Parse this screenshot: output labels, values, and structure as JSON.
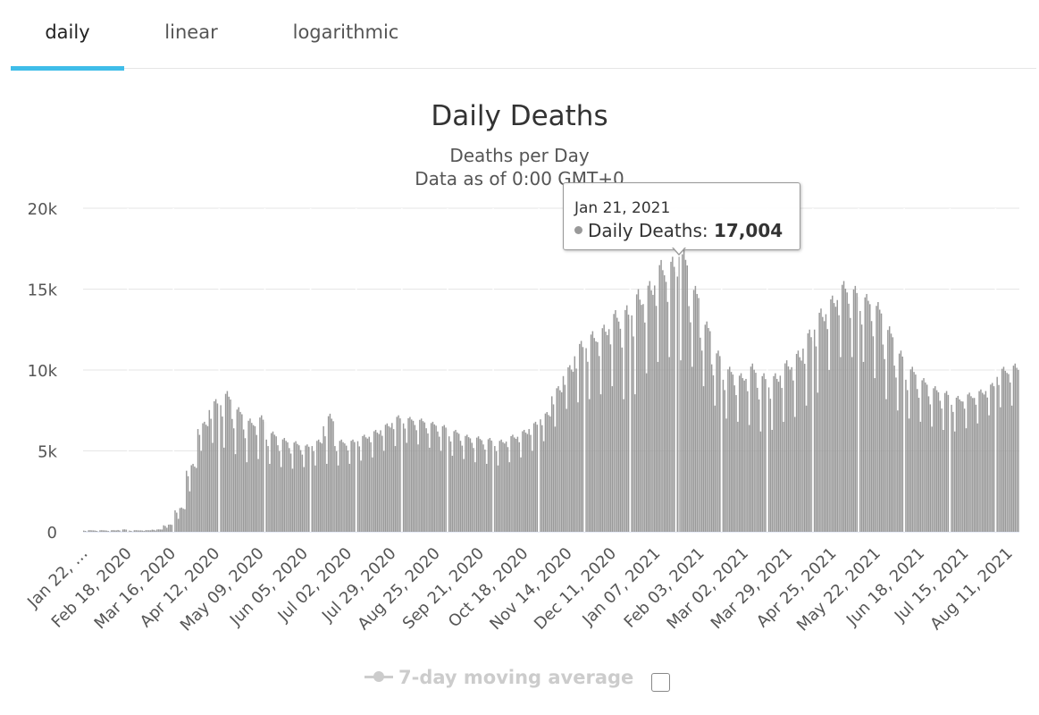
{
  "tabs": [
    {
      "label": "daily",
      "active": true
    },
    {
      "label": "linear",
      "active": false
    },
    {
      "label": "logarithmic",
      "active": false
    }
  ],
  "colors": {
    "accent": "#3fbde9",
    "bar": "#999999",
    "grid": "#e6e6e6",
    "tooltip_border": "#999999"
  },
  "tooltip": {
    "date": "Jan 21, 2021",
    "series": "Daily Deaths",
    "value": "17,004"
  },
  "legend": {
    "label": "7-day moving average",
    "checked": false
  },
  "chart_data": {
    "type": "bar",
    "title": "Daily Deaths",
    "subtitle": "Deaths per Day",
    "subtitle2": "Data as of 0:00 GMT+0",
    "xlabel": "",
    "ylabel": "",
    "ylim": [
      0,
      20000
    ],
    "y_ticks": [
      "0",
      "5k",
      "10k",
      "15k",
      "20k"
    ],
    "grid": true,
    "x_tick_labels": [
      "Jan 22, …",
      "Feb 18, 2020",
      "Mar 16, 2020",
      "Apr 12, 2020",
      "May 09, 2020",
      "Jun 05, 2020",
      "Jul 02, 2020",
      "Jul 29, 2020",
      "Aug 25, 2020",
      "Sep 21, 2020",
      "Oct 18, 2020",
      "Nov 14, 2020",
      "Dec 11, 2020",
      "Jan 07, 2021",
      "Feb 03, 2021",
      "Mar 02, 2021",
      "Mar 29, 2021",
      "Apr 25, 2021",
      "May 22, 2021",
      "Jun 18, 2021",
      "Jul 15, 2021",
      "Aug 11, 2021"
    ],
    "start_date": "2020-01-22",
    "end_date": "2021-08-17",
    "weekly_series": [
      {
        "week_of": "Jan 22, 2020",
        "high": 100,
        "low": 0
      },
      {
        "week_of": "Jan 29, 2020",
        "high": 100,
        "low": 0
      },
      {
        "week_of": "Feb 05, 2020",
        "high": 100,
        "low": 0
      },
      {
        "week_of": "Feb 12, 2020",
        "high": 150,
        "low": 0
      },
      {
        "week_of": "Feb 19, 2020",
        "high": 100,
        "low": 0
      },
      {
        "week_of": "Feb 26, 2020",
        "high": 100,
        "low": 50
      },
      {
        "week_of": "Mar 04, 2020",
        "high": 150,
        "low": 80
      },
      {
        "week_of": "Mar 11, 2020",
        "high": 450,
        "low": 250
      },
      {
        "week_of": "Mar 18, 2020",
        "high": 1500,
        "low": 800
      },
      {
        "week_of": "Mar 25, 2020",
        "high": 4200,
        "low": 2500
      },
      {
        "week_of": "Apr 01, 2020",
        "high": 6800,
        "low": 5000
      },
      {
        "week_of": "Apr 08, 2020",
        "high": 8200,
        "low": 5500
      },
      {
        "week_of": "Apr 15, 2020",
        "high": 8700,
        "low": 5200
      },
      {
        "week_of": "Apr 22, 2020",
        "high": 7700,
        "low": 4800
      },
      {
        "week_of": "Apr 29, 2020",
        "high": 7000,
        "low": 4300
      },
      {
        "week_of": "May 06, 2020",
        "high": 7200,
        "low": 4500
      },
      {
        "week_of": "May 13, 2020",
        "high": 6200,
        "low": 4200
      },
      {
        "week_of": "May 20, 2020",
        "high": 5800,
        "low": 4000
      },
      {
        "week_of": "May 27, 2020",
        "high": 5600,
        "low": 3900
      },
      {
        "week_of": "Jun 03, 2020",
        "high": 5400,
        "low": 4000
      },
      {
        "week_of": "Jun 10, 2020",
        "high": 5700,
        "low": 4100
      },
      {
        "week_of": "Jun 17, 2020",
        "high": 7300,
        "low": 4200
      },
      {
        "week_of": "Jun 24, 2020",
        "high": 5700,
        "low": 4100
      },
      {
        "week_of": "Jul 01, 2020",
        "high": 5700,
        "low": 4200
      },
      {
        "week_of": "Jul 08, 2020",
        "high": 6000,
        "low": 4400
      },
      {
        "week_of": "Jul 15, 2020",
        "high": 6300,
        "low": 4600
      },
      {
        "week_of": "Jul 22, 2020",
        "high": 6700,
        "low": 5000
      },
      {
        "week_of": "Jul 29, 2020",
        "high": 7200,
        "low": 5300
      },
      {
        "week_of": "Aug 05, 2020",
        "high": 7100,
        "low": 5500
      },
      {
        "week_of": "Aug 12, 2020",
        "high": 7000,
        "low": 5400
      },
      {
        "week_of": "Aug 19, 2020",
        "high": 6800,
        "low": 5200
      },
      {
        "week_of": "Aug 26, 2020",
        "high": 6600,
        "low": 5000
      },
      {
        "week_of": "Sep 02, 2020",
        "high": 6300,
        "low": 4700
      },
      {
        "week_of": "Sep 09, 2020",
        "high": 6000,
        "low": 4500
      },
      {
        "week_of": "Sep 16, 2020",
        "high": 5900,
        "low": 4300
      },
      {
        "week_of": "Sep 23, 2020",
        "high": 5800,
        "low": 4200
      },
      {
        "week_of": "Sep 30, 2020",
        "high": 5700,
        "low": 4100
      },
      {
        "week_of": "Oct 07, 2020",
        "high": 6000,
        "low": 4300
      },
      {
        "week_of": "Oct 14, 2020",
        "high": 6300,
        "low": 4600
      },
      {
        "week_of": "Oct 21, 2020",
        "high": 6800,
        "low": 5000
      },
      {
        "week_of": "Oct 28, 2020",
        "high": 7400,
        "low": 5600
      },
      {
        "week_of": "Nov 04, 2020",
        "high": 9000,
        "low": 6500
      },
      {
        "week_of": "Nov 11, 2020",
        "high": 10300,
        "low": 7600
      },
      {
        "week_of": "Nov 18, 2020",
        "high": 11800,
        "low": 8000
      },
      {
        "week_of": "Nov 25, 2020",
        "high": 12400,
        "low": 8200
      },
      {
        "week_of": "Dec 02, 2020",
        "high": 12800,
        "low": 8500
      },
      {
        "week_of": "Dec 09, 2020",
        "high": 13700,
        "low": 9000
      },
      {
        "week_of": "Dec 16, 2020",
        "high": 14000,
        "low": 8200
      },
      {
        "week_of": "Dec 23, 2020",
        "high": 15000,
        "low": 8500
      },
      {
        "week_of": "Dec 30, 2020",
        "high": 15500,
        "low": 9800
      },
      {
        "week_of": "Jan 06, 2021",
        "high": 16800,
        "low": 10500
      },
      {
        "week_of": "Jan 13, 2021",
        "high": 17000,
        "low": 10800
      },
      {
        "week_of": "Jan 20, 2021",
        "high": 17500,
        "low": 10600
      },
      {
        "week_of": "Jan 27, 2021",
        "high": 15200,
        "low": 10200
      },
      {
        "week_of": "Feb 03, 2021",
        "high": 13000,
        "low": 9000
      },
      {
        "week_of": "Feb 10, 2021",
        "high": 11200,
        "low": 7800
      },
      {
        "week_of": "Feb 17, 2021",
        "high": 10200,
        "low": 7000
      },
      {
        "week_of": "Feb 24, 2021",
        "high": 9800,
        "low": 6800
      },
      {
        "week_of": "Mar 03, 2021",
        "high": 10400,
        "low": 6600
      },
      {
        "week_of": "Mar 10, 2021",
        "high": 9800,
        "low": 6200
      },
      {
        "week_of": "Mar 17, 2021",
        "high": 9800,
        "low": 6300
      },
      {
        "week_of": "Mar 24, 2021",
        "high": 10600,
        "low": 6800
      },
      {
        "week_of": "Mar 31, 2021",
        "high": 11200,
        "low": 7100
      },
      {
        "week_of": "Apr 07, 2021",
        "high": 12500,
        "low": 7800
      },
      {
        "week_of": "Apr 14, 2021",
        "high": 13800,
        "low": 8600
      },
      {
        "week_of": "Apr 21, 2021",
        "high": 14600,
        "low": 10000
      },
      {
        "week_of": "Apr 28, 2021",
        "high": 15500,
        "low": 10800
      },
      {
        "week_of": "May 05, 2021",
        "high": 15200,
        "low": 10800
      },
      {
        "week_of": "May 12, 2021",
        "high": 14700,
        "low": 10500
      },
      {
        "week_of": "May 19, 2021",
        "high": 14200,
        "low": 9500
      },
      {
        "week_of": "May 26, 2021",
        "high": 12700,
        "low": 8200
      },
      {
        "week_of": "Jun 02, 2021",
        "high": 11200,
        "low": 7500
      },
      {
        "week_of": "Jun 09, 2021",
        "high": 10200,
        "low": 7000
      },
      {
        "week_of": "Jun 16, 2021",
        "high": 9500,
        "low": 6800
      },
      {
        "week_of": "Jun 23, 2021",
        "high": 9000,
        "low": 6500
      },
      {
        "week_of": "Jun 30, 2021",
        "high": 8700,
        "low": 6300
      },
      {
        "week_of": "Jul 07, 2021",
        "high": 8400,
        "low": 6200
      },
      {
        "week_of": "Jul 14, 2021",
        "high": 8600,
        "low": 6400
      },
      {
        "week_of": "Jul 21, 2021",
        "high": 8800,
        "low": 6700
      },
      {
        "week_of": "Jul 28, 2021",
        "high": 9200,
        "low": 7200
      },
      {
        "week_of": "Aug 04, 2021",
        "high": 10200,
        "low": 7700
      },
      {
        "week_of": "Aug 11, 2021",
        "high": 10400,
        "low": 7800
      }
    ],
    "series": [
      {
        "name": "Daily Deaths"
      }
    ],
    "highlight": {
      "date": "Jan 21, 2021",
      "value": 17004
    }
  }
}
